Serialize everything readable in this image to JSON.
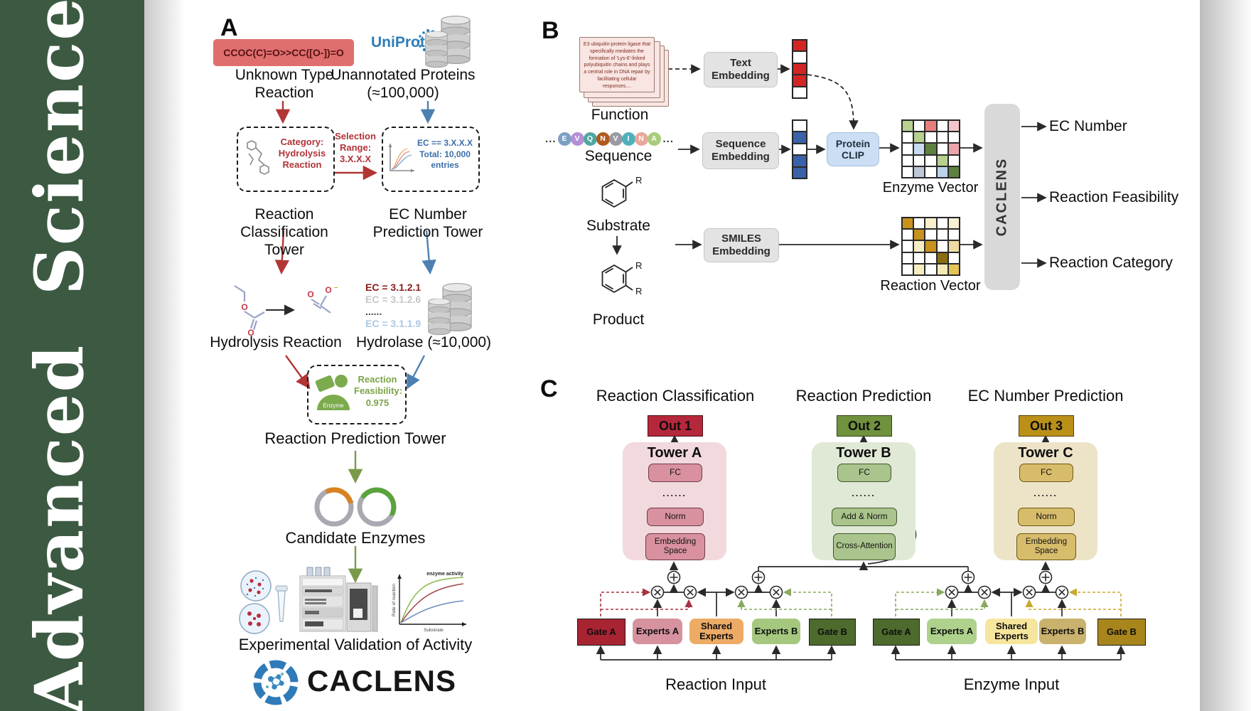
{
  "journal": {
    "name": "Advanced Science",
    "bg_color": "#3c5a42"
  },
  "palette": {
    "red_arrow": "#b23535",
    "blue_arrow": "#4d80b2",
    "green_arrow": "#7a9a4a",
    "uniprot_blue": "#2e7cb6",
    "smiles_box": "#e06e6e",
    "towerA": "#f2d9dd",
    "towerB": "#e0e9d6",
    "towerC": "#ede4c8",
    "out1": "#b5273a",
    "out2": "#70923e",
    "out3": "#ba9018"
  },
  "panelA": {
    "label": "A",
    "smiles": "CCOC(C)=O>>CC([O-])=O",
    "uniprot": "UniProt",
    "unknown_reaction": "Unknown Type Reaction",
    "unannotated_proteins": "Unannotated Proteins (≈100,000)",
    "selection_range": "Selection Range: 3.X.X.X",
    "category_box": "Category: Hydrolysis Reaction",
    "ec_box": "EC == 3.X.X.X Total: 10,000 entries",
    "classification_tower": "Reaction Classification Tower",
    "ec_tower": "EC Number Prediction Tower",
    "hydrolysis_reaction": "Hydrolysis Reaction",
    "ec_list": [
      {
        "text": "EC = 3.1.2.1",
        "color": "#8c1a1a",
        "bold": true
      },
      {
        "text": "EC = 3.1.2.6",
        "color": "#c6c6c6",
        "bold": false
      },
      {
        "text": "......",
        "color": "#444444",
        "bold": false
      },
      {
        "text": "EC = 3.1.1.9",
        "color": "#abc8e6",
        "bold": false
      }
    ],
    "hydrolase": "Hydrolase (≈10,000)",
    "enzyme_badge": "Enzyme",
    "feasibility": "Reaction Feasibility: 0.975",
    "prediction_tower": "Reaction Prediction Tower",
    "candidate_enzymes": "Candidate Enzymes",
    "activity_plot": {
      "ylabel": "Rate of reaction",
      "xlabel": "Substrate",
      "annotation": "enzyme activity"
    },
    "experimental_validation": "Experimental Validation of Activity",
    "brand": "CACLENS"
  },
  "panelB": {
    "label": "B",
    "function_card": "E3 ubiquitin-protein ligase that specifically mediates the formation of 'Lys-6'-linked polyubiquitin chains and plays a central role in DNA repair by facilitating cellular responses....",
    "function_label": "Function",
    "ellipsis": "...",
    "sequence": [
      {
        "ch": "E",
        "color": "#7d9fc4"
      },
      {
        "ch": "V",
        "color": "#b48fd8"
      },
      {
        "ch": "Q",
        "color": "#4fa8a0"
      },
      {
        "ch": "N",
        "color": "#b05a20"
      },
      {
        "ch": "V",
        "color": "#9a9aa2"
      },
      {
        "ch": "I",
        "color": "#4fb0bc"
      },
      {
        "ch": "N",
        "color": "#eaa79a"
      },
      {
        "ch": "A",
        "color": "#a9cc7c"
      }
    ],
    "sequence_label": "Sequence",
    "substrate_label": "Substrate",
    "product_label": "Product",
    "r_group": "R",
    "text_embedding": "Text Embedding",
    "sequence_embedding": "Sequence Embedding",
    "smiles_embedding": "SMILES Embedding",
    "protein_clip": "Protein CLIP",
    "text_vector": {
      "cols": 1,
      "colors": [
        "#d42525",
        "#ffffff",
        "#d42525",
        "#d42525",
        "#ffffff"
      ]
    },
    "seq_vector": {
      "cols": 1,
      "colors": [
        "#ffffff",
        "#3a62a8",
        "#ffffff",
        "#3a62a8",
        "#3a62a8"
      ]
    },
    "enzyme_matrix": {
      "cols": 5,
      "colors": [
        "#b7d08f",
        "#ffffff",
        "#e47f7f",
        "#ffffff",
        "#f2c6ca",
        "#ffffff",
        "#b7d08f",
        "#ffffff",
        "#ffffff",
        "#ffffff",
        "#ffffff",
        "#c8daef",
        "#5f8140",
        "#ffffff",
        "#eba4ac",
        "#ffffff",
        "#ffffff",
        "#ffffff",
        "#b7d08f",
        "#ffffff",
        "#ffffff",
        "#bcc8d6",
        "#ffffff",
        "#bcd2ea",
        "#5f8140"
      ]
    },
    "reaction_matrix": {
      "cols": 5,
      "colors": [
        "#c8921d",
        "#ffffff",
        "#f8efcb",
        "#ffffff",
        "#f8f0d2",
        "#ffffff",
        "#c8921d",
        "#ffffff",
        "#ffffff",
        "#ffffff",
        "#ffffff",
        "#f6edc2",
        "#c8921d",
        "#ffffff",
        "#eedaa2",
        "#ffffff",
        "#ffffff",
        "#ffffff",
        "#8a6d12",
        "#ffffff",
        "#ffffff",
        "#f6edc2",
        "#ffffff",
        "#f5e9b9",
        "#e4c455"
      ]
    },
    "enzyme_vector_label": "Enzyme Vector",
    "reaction_vector_label": "Reaction Vector",
    "caclens": "CACLENS",
    "outputs": [
      "EC Number",
      "Reaction Feasibility",
      "Reaction Category"
    ]
  },
  "panelC": {
    "label": "C",
    "headers": [
      "Reaction Classification",
      "Reaction Prediction",
      "EC Number Prediction"
    ],
    "outs": [
      "Out 1",
      "Out 2",
      "Out 3"
    ],
    "towerA": {
      "title": "Tower A",
      "fc": "FC",
      "dots": "......",
      "norm": "Norm",
      "embed": "Embedding Space"
    },
    "towerB": {
      "title": "Tower B",
      "fc": "FC",
      "dots": "......",
      "addnorm": "Add & Norm",
      "cross": "Cross-Attention"
    },
    "towerC": {
      "title": "Tower C",
      "fc": "FC",
      "dots": "......",
      "norm": "Norm",
      "embed": "Embedding Space"
    },
    "reaction_group": [
      {
        "label": "Gate A",
        "bg": "#a82432"
      },
      {
        "label": "Experts A",
        "bg": "#d6929e"
      },
      {
        "label": "Shared Experts",
        "bg": "#edab66"
      },
      {
        "label": "Experts B",
        "bg": "#a5c87e"
      },
      {
        "label": "Gate B",
        "bg": "#4c6b2c"
      }
    ],
    "enzyme_group": [
      {
        "label": "Gate A",
        "bg": "#4c6b2c"
      },
      {
        "label": "Experts A",
        "bg": "#aed18c"
      },
      {
        "label": "Shared Experts",
        "bg": "#f6e59c"
      },
      {
        "label": "Experts B",
        "bg": "#c9b26e"
      },
      {
        "label": "Gate B",
        "bg": "#a8861c"
      }
    ],
    "reaction_input": "Reaction Input",
    "enzyme_input": "Enzyme Input"
  }
}
